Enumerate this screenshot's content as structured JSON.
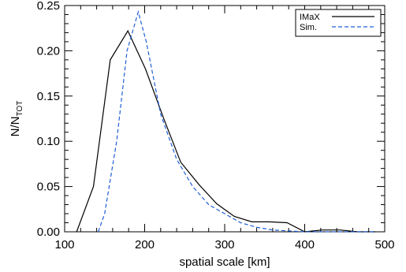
{
  "chart_data": {
    "type": "line",
    "xlabel": "spatial scale [km]",
    "ylabel": {
      "main": "N/N",
      "subscript": "TOT"
    },
    "xlim": [
      100,
      500
    ],
    "ylim": [
      0,
      0.25
    ],
    "x_ticks": [
      100,
      200,
      300,
      400,
      500
    ],
    "x_tick_labels": [
      "100",
      "200",
      "300",
      "400",
      "500"
    ],
    "y_ticks": [
      0,
      0.05,
      0.1,
      0.15,
      0.2,
      0.25
    ],
    "y_tick_labels": [
      "0.00",
      "0.05",
      "0.10",
      "0.15",
      "0.20",
      "0.25"
    ],
    "grid": false,
    "legend_position": "top-right",
    "series": [
      {
        "name": "IMaX",
        "color": "#000000",
        "style": "solid",
        "points": [
          [
            115,
            0.0
          ],
          [
            136,
            0.05
          ],
          [
            157,
            0.19
          ],
          [
            179,
            0.222
          ],
          [
            201,
            0.18
          ],
          [
            223,
            0.127
          ],
          [
            245,
            0.077
          ],
          [
            268,
            0.052
          ],
          [
            290,
            0.031
          ],
          [
            312,
            0.017
          ],
          [
            334,
            0.011
          ],
          [
            356,
            0.011
          ],
          [
            378,
            0.01
          ],
          [
            400,
            0.0
          ],
          [
            422,
            0.002
          ],
          [
            444,
            0.002
          ],
          [
            466,
            0.0
          ],
          [
            488,
            0.0
          ]
        ]
      },
      {
        "name": "Sim.",
        "color": "#1f5fd6",
        "style": "dashed",
        "points": [
          [
            142,
            0.0
          ],
          [
            150,
            0.02
          ],
          [
            165,
            0.1
          ],
          [
            178,
            0.2
          ],
          [
            192,
            0.243
          ],
          [
            202,
            0.21
          ],
          [
            220,
            0.13
          ],
          [
            240,
            0.08
          ],
          [
            260,
            0.05
          ],
          [
            280,
            0.03
          ],
          [
            300,
            0.02
          ],
          [
            320,
            0.01
          ],
          [
            340,
            0.005
          ],
          [
            360,
            0.002
          ],
          [
            380,
            0.001
          ],
          [
            400,
            0.0
          ],
          [
            488,
            0.0
          ]
        ]
      }
    ]
  }
}
